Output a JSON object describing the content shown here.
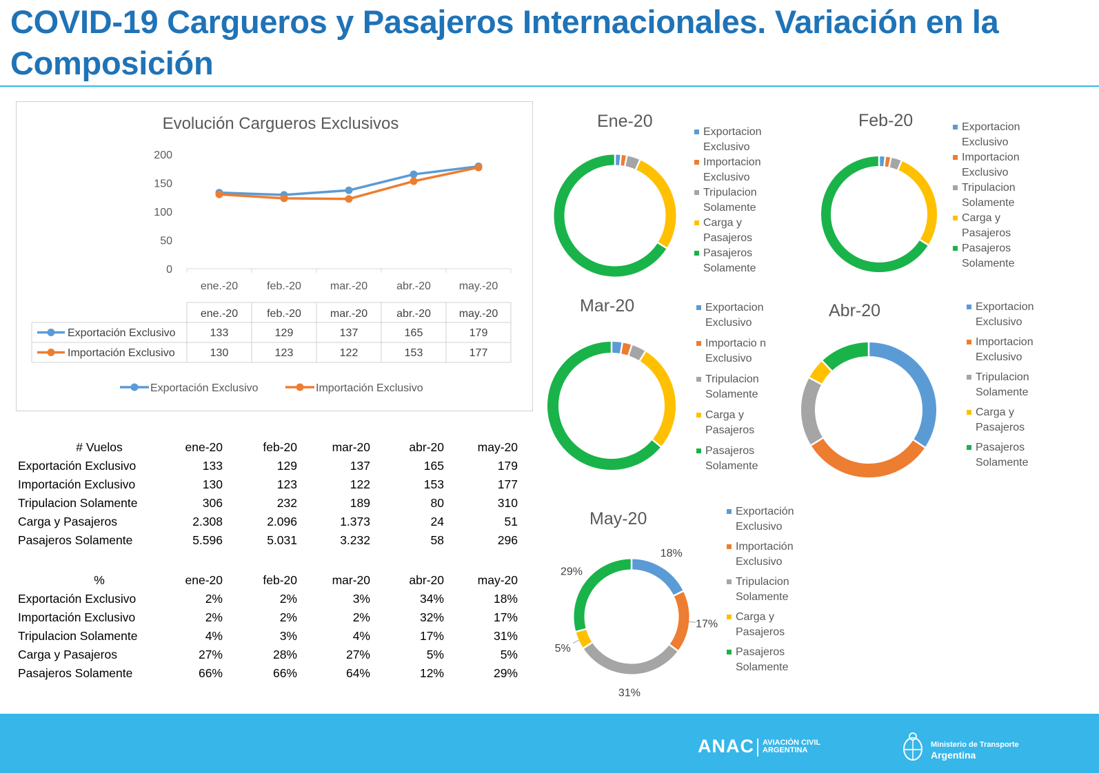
{
  "title": "COVID-19 Cargueros y Pasajeros Internacionales. Variación en la Composición",
  "line_chart": {
    "title": "Evolución Cargueros Exclusivos",
    "categories": [
      "ene.-20",
      "feb.-20",
      "mar.-20",
      "abr.-20",
      "may.-20"
    ],
    "ylim": [
      0,
      200
    ],
    "yticks": [
      "0",
      "50",
      "100",
      "150",
      "200"
    ],
    "series": [
      {
        "name": "Exportación Exclusivo",
        "color": "#5b9bd5",
        "values": [
          133,
          129,
          137,
          165,
          179
        ]
      },
      {
        "name": "Importación Exclusivo",
        "color": "#ed7d31",
        "values": [
          130,
          123,
          122,
          153,
          177
        ]
      }
    ]
  },
  "vuelos_table": {
    "header": [
      "# Vuelos",
      "ene-20",
      "feb-20",
      "mar-20",
      "abr-20",
      "may-20"
    ],
    "rows": [
      [
        "Exportación Exclusivo",
        "133",
        "129",
        "137",
        "165",
        "179"
      ],
      [
        "Importación Exclusivo",
        "130",
        "123",
        "122",
        "153",
        "177"
      ],
      [
        "Tripulacion Solamente",
        "306",
        "232",
        "189",
        "80",
        "310"
      ],
      [
        "Carga y Pasajeros",
        "2.308",
        "2.096",
        "1.373",
        "24",
        "51"
      ],
      [
        "Pasajeros Solamente",
        "5.596",
        "5.031",
        "3.232",
        "58",
        "296"
      ]
    ]
  },
  "pct_table": {
    "header": [
      "%",
      "ene-20",
      "feb-20",
      "mar-20",
      "abr-20",
      "may-20"
    ],
    "rows": [
      [
        "Exportación Exclusivo",
        "2%",
        "2%",
        "3%",
        "34%",
        "18%"
      ],
      [
        "Importación Exclusivo",
        "2%",
        "2%",
        "2%",
        "32%",
        "17%"
      ],
      [
        "Tripulacion Solamente",
        "4%",
        "3%",
        "4%",
        "17%",
        "31%"
      ],
      [
        "Carga y Pasajeros",
        "27%",
        "28%",
        "27%",
        "5%",
        "5%"
      ],
      [
        "Pasajeros Solamente",
        "66%",
        "66%",
        "64%",
        "12%",
        "29%"
      ]
    ]
  },
  "chart_data": [
    {
      "type": "line",
      "title": "Evolución Cargueros Exclusivos",
      "categories": [
        "ene.-20",
        "feb.-20",
        "mar.-20",
        "abr.-20",
        "may.-20"
      ],
      "ylim": [
        0,
        200
      ],
      "series": [
        {
          "name": "Exportación Exclusivo",
          "values": [
            133,
            129,
            137,
            165,
            179
          ]
        },
        {
          "name": "Importación Exclusivo",
          "values": [
            130,
            123,
            122,
            153,
            177
          ]
        }
      ],
      "legend": "bottom"
    },
    {
      "type": "pie",
      "donut": true,
      "title": "Ene-20",
      "labels": [
        "Exportacion Exclusivo",
        "Importacion Exclusivo",
        "Tripulacion Solamente",
        "Carga y Pasajeros",
        "Pasajeros Solamente"
      ],
      "values": [
        133,
        130,
        306,
        2308,
        5596
      ],
      "legend": "right"
    },
    {
      "type": "pie",
      "donut": true,
      "title": "Feb-20",
      "labels": [
        "Exportacion Exclusivo",
        "Importacion Exclusivo",
        "Tripulacion Solamente",
        "Carga y Pasajeros",
        "Pasajeros Solamente"
      ],
      "values": [
        129,
        123,
        232,
        2096,
        5031
      ],
      "legend": "right"
    },
    {
      "type": "pie",
      "donut": true,
      "title": "Mar-20",
      "labels": [
        "Exportacion Exclusivo",
        "Importacio n Exclusivo",
        "Tripulacion Solamente",
        "Carga y Pasajeros",
        "Pasajeros Solamente"
      ],
      "values": [
        137,
        122,
        189,
        1373,
        3232
      ],
      "legend": "right"
    },
    {
      "type": "pie",
      "donut": true,
      "title": "Abr-20",
      "labels": [
        "Exportacion Exclusivo",
        "Importacion Exclusivo",
        "Tripulacion Solamente",
        "Carga y Pasajeros",
        "Pasajeros Solamente"
      ],
      "values": [
        165,
        153,
        80,
        24,
        58
      ],
      "legend": "right"
    },
    {
      "type": "pie",
      "donut": true,
      "title": "May-20",
      "labels": [
        "Exportación Exclusivo",
        "Importación Exclusivo",
        "Tripulacion Solamente",
        "Carga y Pasajeros",
        "Pasajeros Solamente"
      ],
      "values": [
        179,
        177,
        310,
        51,
        296
      ],
      "data_labels": [
        "18%",
        "17%",
        "31%",
        "5%",
        "29%"
      ],
      "legend": "right"
    }
  ],
  "palette": [
    "#5b9bd5",
    "#ed7d31",
    "#a5a5a5",
    "#ffc000",
    "#19b34a"
  ],
  "footer": {
    "anac": "ANAC",
    "anac_sub1": "AVIACIÓN CIVIL",
    "anac_sub2": "ARGENTINA",
    "ministry_line1": "Ministerio de Transporte",
    "ministry_line2": "Argentina",
    "bg_color": "#36b6e9"
  }
}
